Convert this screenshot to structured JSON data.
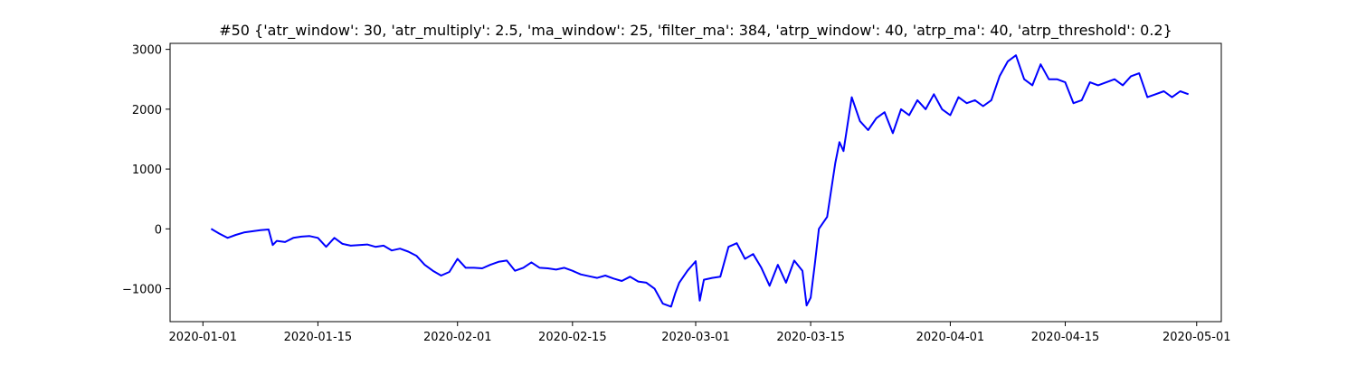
{
  "chart_data": {
    "type": "line",
    "title": "#50 {'atr_window': 30, 'atr_multiply': 2.5, 'ma_window': 25, 'filter_ma': 384, 'atrp_window': 40, 'atrp_ma': 40, 'atrp_threshold': 0.2}",
    "xlabel": "",
    "ylabel": "",
    "x_is_date": true,
    "xlim": [
      "2019-12-28",
      "2020-05-04"
    ],
    "ylim": [
      -1550,
      3100
    ],
    "grid": false,
    "legend": "none",
    "line_color": "#0000ff",
    "x_ticks": [
      "2020-01-01",
      "2020-01-15",
      "2020-02-01",
      "2020-02-15",
      "2020-03-01",
      "2020-03-15",
      "2020-04-01",
      "2020-04-15",
      "2020-05-01"
    ],
    "y_ticks": [
      -1000,
      0,
      1000,
      2000,
      3000
    ],
    "series": [
      {
        "name": "",
        "points": [
          [
            "2020-01-02",
            0
          ],
          [
            "2020-01-03",
            -80
          ],
          [
            "2020-01-04",
            -150
          ],
          [
            "2020-01-05",
            -100
          ],
          [
            "2020-01-06",
            -60
          ],
          [
            "2020-01-07",
            -40
          ],
          [
            "2020-01-08",
            -20
          ],
          [
            "2020-01-09",
            -10
          ],
          [
            "2020-01-09T12",
            -270
          ],
          [
            "2020-01-10",
            -200
          ],
          [
            "2020-01-11",
            -220
          ],
          [
            "2020-01-12",
            -150
          ],
          [
            "2020-01-13",
            -130
          ],
          [
            "2020-01-14",
            -120
          ],
          [
            "2020-01-15",
            -150
          ],
          [
            "2020-01-16",
            -300
          ],
          [
            "2020-01-17",
            -150
          ],
          [
            "2020-01-18",
            -250
          ],
          [
            "2020-01-19",
            -280
          ],
          [
            "2020-01-20",
            -270
          ],
          [
            "2020-01-21",
            -260
          ],
          [
            "2020-01-22",
            -300
          ],
          [
            "2020-01-23",
            -280
          ],
          [
            "2020-01-24",
            -360
          ],
          [
            "2020-01-25",
            -330
          ],
          [
            "2020-01-26",
            -380
          ],
          [
            "2020-01-27",
            -450
          ],
          [
            "2020-01-28",
            -600
          ],
          [
            "2020-01-29",
            -700
          ],
          [
            "2020-01-30",
            -780
          ],
          [
            "2020-01-31",
            -720
          ],
          [
            "2020-02-01",
            -500
          ],
          [
            "2020-02-02",
            -650
          ],
          [
            "2020-02-03",
            -650
          ],
          [
            "2020-02-04",
            -660
          ],
          [
            "2020-02-05",
            -600
          ],
          [
            "2020-02-06",
            -550
          ],
          [
            "2020-02-07",
            -530
          ],
          [
            "2020-02-08",
            -700
          ],
          [
            "2020-02-09",
            -650
          ],
          [
            "2020-02-10",
            -560
          ],
          [
            "2020-02-11",
            -650
          ],
          [
            "2020-02-12",
            -660
          ],
          [
            "2020-02-13",
            -680
          ],
          [
            "2020-02-14",
            -650
          ],
          [
            "2020-02-15",
            -700
          ],
          [
            "2020-02-16",
            -760
          ],
          [
            "2020-02-17",
            -790
          ],
          [
            "2020-02-18",
            -820
          ],
          [
            "2020-02-19",
            -780
          ],
          [
            "2020-02-20",
            -830
          ],
          [
            "2020-02-21",
            -870
          ],
          [
            "2020-02-22",
            -800
          ],
          [
            "2020-02-23",
            -880
          ],
          [
            "2020-02-24",
            -900
          ],
          [
            "2020-02-25",
            -1000
          ],
          [
            "2020-02-26",
            -1250
          ],
          [
            "2020-02-27",
            -1300
          ],
          [
            "2020-02-27T12",
            -1080
          ],
          [
            "2020-02-28",
            -900
          ],
          [
            "2020-02-29",
            -700
          ],
          [
            "2020-03-01",
            -540
          ],
          [
            "2020-03-01T12",
            -1200
          ],
          [
            "2020-03-02",
            -850
          ],
          [
            "2020-03-03",
            -820
          ],
          [
            "2020-03-04",
            -800
          ],
          [
            "2020-03-05",
            -300
          ],
          [
            "2020-03-06",
            -240
          ],
          [
            "2020-03-07",
            -500
          ],
          [
            "2020-03-08",
            -420
          ],
          [
            "2020-03-09",
            -650
          ],
          [
            "2020-03-10",
            -950
          ],
          [
            "2020-03-11",
            -600
          ],
          [
            "2020-03-12",
            -900
          ],
          [
            "2020-03-13",
            -530
          ],
          [
            "2020-03-14",
            -700
          ],
          [
            "2020-03-14T12",
            -1280
          ],
          [
            "2020-03-15",
            -1150
          ],
          [
            "2020-03-15T12",
            -600
          ],
          [
            "2020-03-16",
            0
          ],
          [
            "2020-03-17",
            200
          ],
          [
            "2020-03-18",
            1100
          ],
          [
            "2020-03-18T12",
            1450
          ],
          [
            "2020-03-19",
            1300
          ],
          [
            "2020-03-20",
            2200
          ],
          [
            "2020-03-21",
            1800
          ],
          [
            "2020-03-22",
            1650
          ],
          [
            "2020-03-23",
            1850
          ],
          [
            "2020-03-24",
            1950
          ],
          [
            "2020-03-25",
            1600
          ],
          [
            "2020-03-26",
            2000
          ],
          [
            "2020-03-27",
            1900
          ],
          [
            "2020-03-28",
            2150
          ],
          [
            "2020-03-29",
            2000
          ],
          [
            "2020-03-30",
            2250
          ],
          [
            "2020-03-31",
            2000
          ],
          [
            "2020-04-01",
            1900
          ],
          [
            "2020-04-02",
            2200
          ],
          [
            "2020-04-03",
            2100
          ],
          [
            "2020-04-04",
            2150
          ],
          [
            "2020-04-05",
            2050
          ],
          [
            "2020-04-06",
            2150
          ],
          [
            "2020-04-07",
            2550
          ],
          [
            "2020-04-08",
            2800
          ],
          [
            "2020-04-09",
            2900
          ],
          [
            "2020-04-10",
            2500
          ],
          [
            "2020-04-11",
            2400
          ],
          [
            "2020-04-12",
            2750
          ],
          [
            "2020-04-13",
            2500
          ],
          [
            "2020-04-14",
            2500
          ],
          [
            "2020-04-15",
            2450
          ],
          [
            "2020-04-16",
            2100
          ],
          [
            "2020-04-17",
            2150
          ],
          [
            "2020-04-18",
            2450
          ],
          [
            "2020-04-19",
            2400
          ],
          [
            "2020-04-20",
            2450
          ],
          [
            "2020-04-21",
            2500
          ],
          [
            "2020-04-22",
            2400
          ],
          [
            "2020-04-23",
            2550
          ],
          [
            "2020-04-24",
            2600
          ],
          [
            "2020-04-25",
            2200
          ],
          [
            "2020-04-26",
            2250
          ],
          [
            "2020-04-27",
            2300
          ],
          [
            "2020-04-28",
            2200
          ],
          [
            "2020-04-29",
            2300
          ],
          [
            "2020-04-30",
            2250
          ]
        ]
      }
    ]
  }
}
